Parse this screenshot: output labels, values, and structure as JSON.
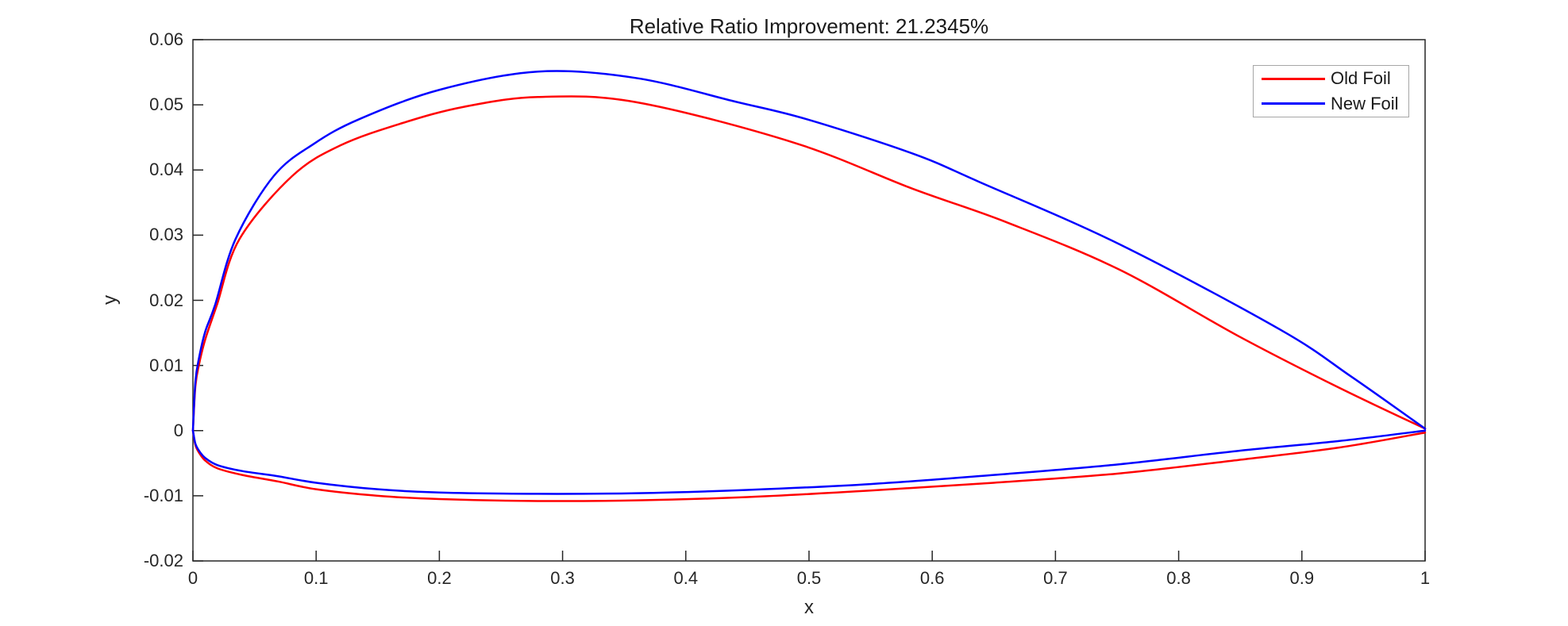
{
  "figure": {
    "background": "#ffffff"
  },
  "chart_data": {
    "type": "line",
    "title": "Relative Ratio Improvement: 21.2345%",
    "xlabel": "x",
    "ylabel": "y",
    "xlim": [
      0,
      1
    ],
    "ylim": [
      -0.02,
      0.06
    ],
    "grid": false,
    "box": true,
    "tick_direction": "in",
    "axis_color": "#262626",
    "line_width": 2.5,
    "legend_position": "northeast",
    "xticks": [
      {
        "v": 0.0,
        "label": "0"
      },
      {
        "v": 0.1,
        "label": "0.1"
      },
      {
        "v": 0.2,
        "label": "0.2"
      },
      {
        "v": 0.3,
        "label": "0.3"
      },
      {
        "v": 0.4,
        "label": "0.4"
      },
      {
        "v": 0.5,
        "label": "0.5"
      },
      {
        "v": 0.6,
        "label": "0.6"
      },
      {
        "v": 0.7,
        "label": "0.7"
      },
      {
        "v": 0.8,
        "label": "0.8"
      },
      {
        "v": 0.9,
        "label": "0.9"
      },
      {
        "v": 1.0,
        "label": "1"
      }
    ],
    "yticks": [
      {
        "v": -0.02,
        "label": "-0.02"
      },
      {
        "v": -0.01,
        "label": "-0.01"
      },
      {
        "v": 0.0,
        "label": "0"
      },
      {
        "v": 0.01,
        "label": "0.01"
      },
      {
        "v": 0.02,
        "label": "0.02"
      },
      {
        "v": 0.03,
        "label": "0.03"
      },
      {
        "v": 0.04,
        "label": "0.04"
      },
      {
        "v": 0.05,
        "label": "0.05"
      },
      {
        "v": 0.06,
        "label": "0.06"
      }
    ],
    "series": [
      {
        "name": "Old Foil",
        "color": "#ff0000",
        "upper": [
          [
            0,
            0
          ],
          [
            0.002,
            0.0068
          ],
          [
            0.005,
            0.0102
          ],
          [
            0.01,
            0.014
          ],
          [
            0.0195,
            0.0193
          ],
          [
            0.0378,
            0.0294
          ],
          [
            0.0807,
            0.0391
          ],
          [
            0.12,
            0.0438
          ],
          [
            0.17,
            0.0472
          ],
          [
            0.22,
            0.0497
          ],
          [
            0.28,
            0.0512
          ],
          [
            0.36,
            0.0504
          ],
          [
            0.4877,
            0.0442
          ],
          [
            0.5844,
            0.0371
          ],
          [
            0.66,
            0.032
          ],
          [
            0.752,
            0.0247
          ],
          [
            0.8486,
            0.0145
          ],
          [
            0.93,
            0.0066
          ],
          [
            1,
            0.0003
          ]
        ],
        "lower": [
          [
            0,
            0
          ],
          [
            0.002,
            -0.0022
          ],
          [
            0.005,
            -0.0034
          ],
          [
            0.01,
            -0.0046
          ],
          [
            0.02,
            -0.0058
          ],
          [
            0.04,
            -0.0068
          ],
          [
            0.069,
            -0.0078
          ],
          [
            0.1,
            -0.009
          ],
          [
            0.15,
            -0.01
          ],
          [
            0.2,
            -0.0105
          ],
          [
            0.28,
            -0.0108
          ],
          [
            0.36,
            -0.0107
          ],
          [
            0.45,
            -0.0102
          ],
          [
            0.55,
            -0.0092
          ],
          [
            0.65,
            -0.008
          ],
          [
            0.75,
            -0.0066
          ],
          [
            0.8486,
            -0.0045
          ],
          [
            0.93,
            -0.0026
          ],
          [
            1,
            -0.0003
          ]
        ]
      },
      {
        "name": "New Foil",
        "color": "#0000ff",
        "upper": [
          [
            0,
            0
          ],
          [
            0.002,
            0.0075
          ],
          [
            0.005,
            0.0112
          ],
          [
            0.01,
            0.0152
          ],
          [
            0.018,
            0.0193
          ],
          [
            0.0346,
            0.0294
          ],
          [
            0.0657,
            0.0391
          ],
          [
            0.098,
            0.044
          ],
          [
            0.135,
            0.0478
          ],
          [
            0.2,
            0.0523
          ],
          [
            0.28,
            0.0551
          ],
          [
            0.36,
            0.0541
          ],
          [
            0.44,
            0.0505
          ],
          [
            0.498,
            0.0478
          ],
          [
            0.5844,
            0.0425
          ],
          [
            0.639,
            0.0381
          ],
          [
            0.752,
            0.0286
          ],
          [
            0.8824,
            0.0155
          ],
          [
            0.94,
            0.0083
          ],
          [
            1,
            0.0003
          ]
        ],
        "lower": [
          [
            0,
            0
          ],
          [
            0.002,
            -0.002
          ],
          [
            0.005,
            -0.0031
          ],
          [
            0.01,
            -0.0042
          ],
          [
            0.02,
            -0.0053
          ],
          [
            0.04,
            -0.0062
          ],
          [
            0.069,
            -0.007
          ],
          [
            0.1,
            -0.008
          ],
          [
            0.15,
            -0.009
          ],
          [
            0.2,
            -0.0095
          ],
          [
            0.28,
            -0.0097
          ],
          [
            0.36,
            -0.0096
          ],
          [
            0.45,
            -0.0091
          ],
          [
            0.55,
            -0.0082
          ],
          [
            0.65,
            -0.0068
          ],
          [
            0.75,
            -0.0052
          ],
          [
            0.8486,
            -0.0031
          ],
          [
            0.93,
            -0.0016
          ],
          [
            1,
            0
          ]
        ]
      }
    ]
  }
}
